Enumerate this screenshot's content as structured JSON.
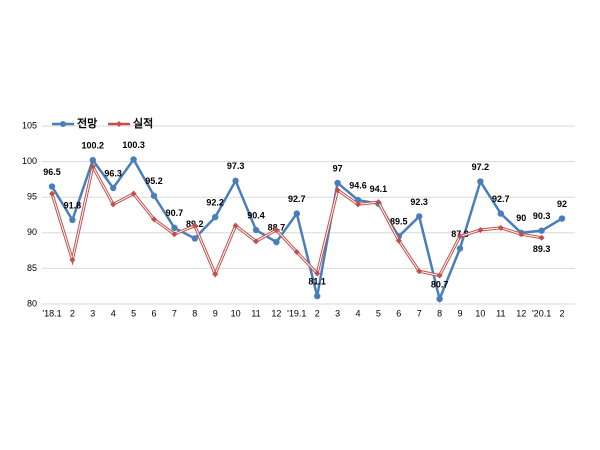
{
  "chart_data": {
    "type": "line",
    "categories": [
      "'18.1",
      "2",
      "3",
      "4",
      "5",
      "6",
      "7",
      "8",
      "9",
      "10",
      "11",
      "12",
      "'19.1",
      "2",
      "3",
      "4",
      "5",
      "6",
      "7",
      "8",
      "9",
      "10",
      "11",
      "12",
      "'20.1",
      "2"
    ],
    "series": [
      {
        "name": "전망",
        "color": "#4a7ebb",
        "values": [
          96.5,
          91.8,
          100.2,
          96.3,
          100.3,
          95.2,
          90.7,
          89.2,
          92.2,
          97.3,
          90.4,
          88.7,
          92.7,
          81.1,
          97.0,
          94.6,
          94.1,
          89.5,
          92.3,
          80.7,
          87.8,
          97.2,
          92.7,
          90.0,
          90.3,
          92.0
        ]
      },
      {
        "name": "실적",
        "color": "#c0504d",
        "values": [
          95.5,
          86.2,
          99.3,
          94.0,
          95.5,
          91.9,
          89.8,
          91.0,
          84.2,
          91.0,
          88.8,
          90.4,
          87.3,
          84.3,
          96.0,
          94.0,
          94.3,
          88.9,
          84.6,
          84.0,
          89.5,
          90.4,
          90.7,
          89.8,
          89.3,
          null
        ],
        "value_labels": [
          null,
          null,
          null,
          null,
          null,
          null,
          null,
          null,
          null,
          null,
          null,
          null,
          null,
          null,
          null,
          null,
          null,
          null,
          null,
          null,
          null,
          null,
          null,
          null,
          "89.3",
          null
        ]
      }
    ],
    "ylim": [
      80,
      105
    ],
    "yticks": [
      80,
      85,
      90,
      95,
      100,
      105
    ],
    "grid": true,
    "legend": "top-left"
  }
}
